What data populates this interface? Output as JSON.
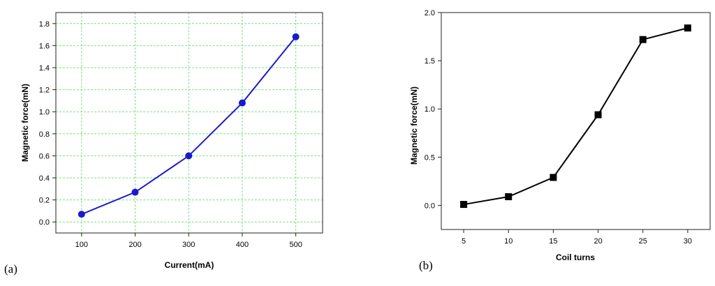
{
  "chart_data": [
    {
      "type": "line",
      "panel_label": "(a)",
      "xlabel": "Current(mA)",
      "ylabel": "Magnetic force(mN)",
      "x": [
        100,
        200,
        300,
        400,
        500
      ],
      "series": [
        {
          "values": [
            0.07,
            0.27,
            0.6,
            1.08,
            1.68
          ],
          "color": "#1a1acc",
          "marker": "circle"
        }
      ],
      "xticks": [
        100,
        200,
        300,
        400,
        500
      ],
      "xtick_labels": [
        "100",
        "200",
        "300",
        "400",
        "500"
      ],
      "yticks": [
        0.0,
        0.2,
        0.4,
        0.6,
        0.8,
        1.0,
        1.2,
        1.4,
        1.6,
        1.8
      ],
      "ytick_labels": [
        "0.0",
        "0.2",
        "0.4",
        "0.6",
        "0.8",
        "1.0",
        "1.2",
        "1.4",
        "1.6",
        "1.8"
      ],
      "xlim": [
        52,
        550
      ],
      "ylim": [
        -0.1,
        1.9
      ],
      "grid": true,
      "grid_color": "#7de07d"
    },
    {
      "type": "line",
      "panel_label": "(b)",
      "xlabel": "Coil turns",
      "ylabel": "Magnetic force(mN)",
      "x": [
        5,
        10,
        15,
        20,
        25,
        30
      ],
      "series": [
        {
          "values": [
            0.01,
            0.09,
            0.29,
            0.94,
            1.72,
            1.84
          ],
          "color": "#000000",
          "marker": "square"
        }
      ],
      "xticks": [
        5,
        10,
        15,
        20,
        25,
        30
      ],
      "xtick_labels": [
        "5",
        "10",
        "15",
        "20",
        "25",
        "30"
      ],
      "yticks": [
        0.0,
        0.5,
        1.0,
        1.5,
        2.0
      ],
      "ytick_labels": [
        "0.0",
        "0.5",
        "1.0",
        "1.5",
        "2.0"
      ],
      "xlim": [
        2.5,
        32.5
      ],
      "ylim": [
        -0.25,
        2.0
      ],
      "grid": false
    }
  ]
}
